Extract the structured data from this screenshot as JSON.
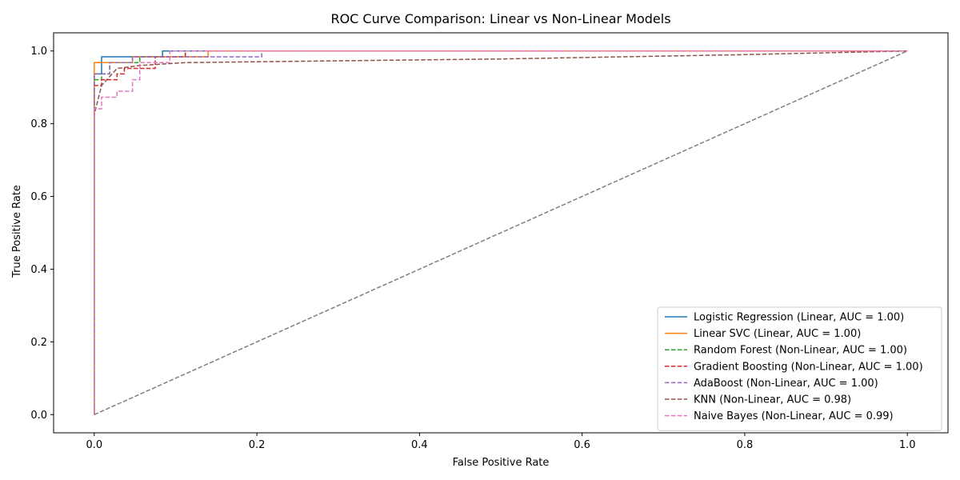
{
  "chart_data": {
    "type": "line",
    "title": "ROC Curve Comparison: Linear vs Non-Linear Models",
    "xlabel": "False Positive Rate",
    "ylabel": "True Positive Rate",
    "xlim": [
      -0.05,
      1.05
    ],
    "ylim": [
      -0.05,
      1.05
    ],
    "x_ticks": [
      "0.0",
      "0.2",
      "0.4",
      "0.6",
      "0.8",
      "1.0"
    ],
    "y_ticks": [
      "0.0",
      "0.2",
      "0.4",
      "0.6",
      "0.8",
      "1.0"
    ],
    "grid": false,
    "legend_position": "lower-right",
    "series": [
      {
        "name": "Logistic Regression (Linear, AUC = 1.00)",
        "color": "#1f77b4",
        "dashed": false,
        "x": [
          0,
          0,
          0.009,
          0.009,
          0.084,
          0.084,
          1.0
        ],
        "y": [
          0,
          0.937,
          0.937,
          0.984,
          0.984,
          1.0,
          1.0
        ]
      },
      {
        "name": "Linear SVC (Linear, AUC = 1.00)",
        "color": "#ff7f0e",
        "dashed": false,
        "x": [
          0,
          0,
          0.047,
          0.047,
          0.14,
          0.14,
          1.0
        ],
        "y": [
          0,
          0.968,
          0.968,
          0.984,
          0.984,
          1.0,
          1.0
        ]
      },
      {
        "name": "Random Forest (Non-Linear, AUC = 1.00)",
        "color": "#2ca02c",
        "dashed": true,
        "x": [
          0,
          0,
          0.009,
          0.009,
          0.019,
          0.019,
          0.056,
          0.056,
          0.065,
          0.065,
          0.112,
          0.112,
          1.0
        ],
        "y": [
          0,
          0.921,
          0.921,
          0.937,
          0.937,
          0.968,
          0.968,
          0.984,
          0.984,
          0.984,
          0.984,
          1.0,
          1.0
        ]
      },
      {
        "name": "Gradient Boosting (Non-Linear, AUC = 1.00)",
        "color": "#d62728",
        "dashed": true,
        "x": [
          0,
          0,
          0.009,
          0.009,
          0.028,
          0.028,
          0.037,
          0.037,
          0.075,
          0.075,
          0.112,
          0.112,
          1.0
        ],
        "y": [
          0,
          0.905,
          0.905,
          0.921,
          0.921,
          0.937,
          0.937,
          0.952,
          0.952,
          0.984,
          0.984,
          1.0,
          1.0
        ]
      },
      {
        "name": "AdaBoost (Non-Linear, AUC = 1.00)",
        "color": "#9467bd",
        "dashed": true,
        "x": [
          0,
          0,
          0.019,
          0.019,
          0.047,
          0.047,
          0.206,
          0.206,
          0.206,
          1.0
        ],
        "y": [
          0,
          0.937,
          0.937,
          0.968,
          0.968,
          0.984,
          0.984,
          0.984,
          1.0,
          1.0
        ]
      },
      {
        "name": "KNN (Non-Linear, AUC = 0.98)",
        "color": "#8c564b",
        "dashed": true,
        "x": [
          0,
          0,
          0.009,
          0.028,
          0.056,
          0.112,
          0.3,
          0.5,
          0.8,
          1.0
        ],
        "y": [
          0,
          0.825,
          0.905,
          0.952,
          0.96,
          0.968,
          0.973,
          0.978,
          0.99,
          1.0
        ]
      },
      {
        "name": "Naive Bayes (Non-Linear, AUC = 0.99)",
        "color": "#e377c2",
        "dashed": true,
        "x": [
          0,
          0,
          0.009,
          0.009,
          0.028,
          0.028,
          0.047,
          0.047,
          0.056,
          0.056,
          0.093,
          0.093,
          1.0
        ],
        "y": [
          0,
          0.841,
          0.841,
          0.873,
          0.873,
          0.889,
          0.889,
          0.921,
          0.921,
          0.968,
          0.968,
          1.0,
          1.0
        ]
      },
      {
        "name": "",
        "color": "#7f7f7f",
        "dashed": true,
        "diagonal": true,
        "x": [
          0,
          1
        ],
        "y": [
          0,
          1
        ]
      }
    ]
  }
}
